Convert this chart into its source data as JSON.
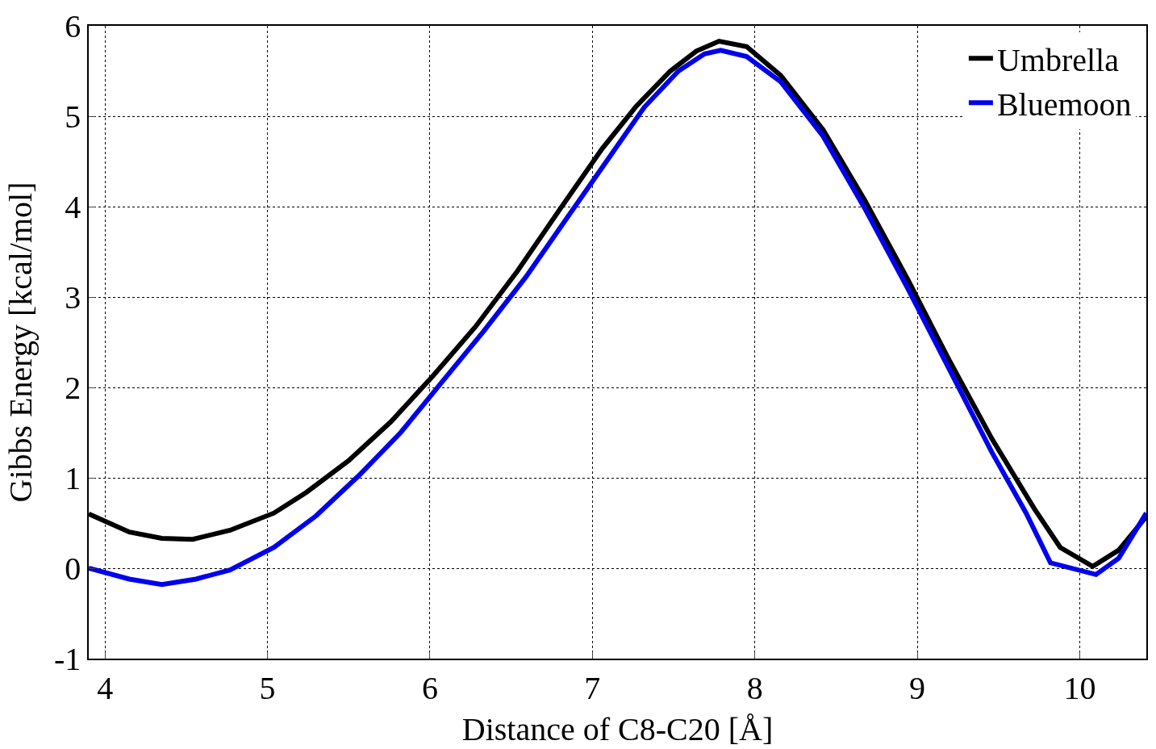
{
  "chart_data": {
    "type": "line",
    "xlabel": "Distance of C8-C20 [Å]",
    "ylabel": "Gibbs Energy [kcal/mol]",
    "xlim": [
      3.9,
      10.41
    ],
    "ylim": [
      -1,
      6
    ],
    "xticks": [
      4,
      5,
      6,
      7,
      8,
      9,
      10
    ],
    "yticks": [
      -1,
      0,
      1,
      2,
      3,
      4,
      5,
      6
    ],
    "grid": true,
    "legend": "top right",
    "line_style": "solid",
    "marker": "none",
    "series": [
      {
        "name": "Umbrella",
        "color": "#000000",
        "x": [
          3.9,
          4.15,
          4.35,
          4.54,
          4.77,
          5.04,
          5.24,
          5.5,
          5.76,
          6.02,
          6.28,
          6.54,
          6.8,
          7.06,
          7.27,
          7.48,
          7.64,
          7.78,
          7.95,
          8.16,
          8.42,
          8.68,
          8.94,
          9.2,
          9.46,
          9.72,
          9.88,
          10.08,
          10.24,
          10.41
        ],
        "values": [
          0.6,
          0.4,
          0.33,
          0.32,
          0.42,
          0.61,
          0.84,
          1.19,
          1.62,
          2.13,
          2.67,
          3.29,
          3.97,
          4.64,
          5.11,
          5.5,
          5.72,
          5.83,
          5.77,
          5.45,
          4.85,
          4.06,
          3.2,
          2.29,
          1.43,
          0.66,
          0.23,
          0.02,
          0.2,
          0.57
        ]
      },
      {
        "name": "Bluemoon",
        "color": "#0000ee",
        "x": [
          3.9,
          4.15,
          4.35,
          4.56,
          4.77,
          5.04,
          5.3,
          5.56,
          5.82,
          6.07,
          6.33,
          6.59,
          6.85,
          7.11,
          7.32,
          7.53,
          7.69,
          7.79,
          7.95,
          8.16,
          8.42,
          8.68,
          8.94,
          9.2,
          9.46,
          9.67,
          9.82,
          10.1,
          10.24,
          10.41
        ],
        "values": [
          0.0,
          -0.12,
          -0.18,
          -0.12,
          -0.02,
          0.23,
          0.58,
          1.02,
          1.5,
          2.05,
          2.62,
          3.22,
          3.89,
          4.56,
          5.1,
          5.5,
          5.69,
          5.73,
          5.66,
          5.38,
          4.78,
          3.97,
          3.1,
          2.19,
          1.28,
          0.61,
          0.06,
          -0.07,
          0.11,
          0.61
        ]
      }
    ]
  }
}
